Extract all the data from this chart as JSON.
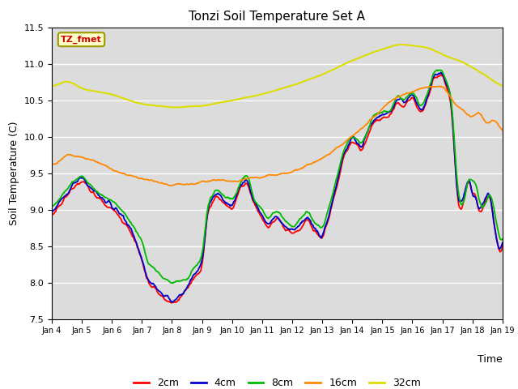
{
  "title": "Tonzi Soil Temperature Set A",
  "xlabel": "Time",
  "ylabel": "Soil Temperature (C)",
  "ylim": [
    7.5,
    11.5
  ],
  "plot_bg_color": "#dcdcdc",
  "annotation_text": "TZ_fmet",
  "annotation_color": "#cc0000",
  "annotation_bg": "#ffffcc",
  "annotation_border": "#999900",
  "legend_entries": [
    "2cm",
    "4cm",
    "8cm",
    "16cm",
    "32cm"
  ],
  "line_colors": [
    "#ff0000",
    "#0000cc",
    "#00bb00",
    "#ff8800",
    "#dddd00"
  ],
  "line_widths": [
    1.3,
    1.3,
    1.3,
    1.3,
    1.5
  ],
  "xtick_labels": [
    "Jan 4",
    "Jan 5",
    "Jan 6",
    "Jan 7",
    "Jan 8",
    "Jan 9",
    "Jan 10",
    "Jan 11",
    "Jan 12",
    "Jan 13",
    "Jan 14",
    "Jan 15",
    "Jan 16",
    "Jan 17",
    "Jan 18",
    "Jan 19"
  ],
  "n_points": 600
}
